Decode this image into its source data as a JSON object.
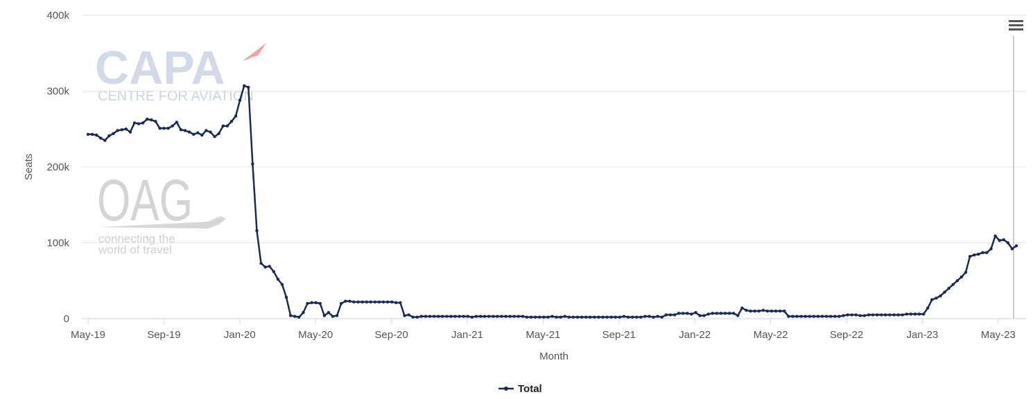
{
  "watermark": {
    "capa_logo": "CAPA",
    "capa_tagline": "CENTRE FOR AVIATION",
    "oag_logo": "OAG",
    "oag_tagline_line1": "connecting the",
    "oag_tagline_line2": "world of travel"
  },
  "menu": {
    "icon": "hamburger-menu-icon"
  },
  "colors": {
    "series": "#1b2a55",
    "grid": "#e6e6e6",
    "axis_text": "#555555",
    "crosshair": "#cccccc"
  },
  "chart_data": {
    "type": "line",
    "title": "",
    "xlabel": "Month",
    "ylabel": "Seats",
    "ylim": [
      0,
      400000
    ],
    "yticks": [
      0,
      100000,
      200000,
      300000,
      400000
    ],
    "ytick_labels": [
      "0",
      "100k",
      "200k",
      "300k",
      "400k"
    ],
    "xtick_labels": [
      "May-19",
      "Sep-19",
      "Jan-20",
      "May-20",
      "Sep-20",
      "Jan-21",
      "May-21",
      "Sep-21",
      "Jan-22",
      "May-22",
      "Sep-22",
      "Jan-23",
      "May-23"
    ],
    "x_start": "2019-05",
    "x_end": "2023-07",
    "grid": true,
    "legend_position": "bottom-center",
    "series": [
      {
        "name": "Total",
        "color": "#1b2a55",
        "values": [
          243000,
          243000,
          242000,
          238000,
          235000,
          241000,
          244000,
          248000,
          249000,
          250000,
          246000,
          258000,
          257000,
          258000,
          263000,
          262000,
          260000,
          251000,
          251000,
          251000,
          254000,
          259000,
          249000,
          248000,
          246000,
          243000,
          245000,
          242000,
          248000,
          246000,
          240000,
          244000,
          254000,
          254000,
          260000,
          267000,
          288000,
          307000,
          305000,
          204000,
          116000,
          73000,
          68000,
          69000,
          62000,
          52000,
          45000,
          28000,
          4000,
          3000,
          2000,
          8000,
          20000,
          21000,
          21000,
          20000,
          4000,
          8000,
          3000,
          4000,
          20000,
          23000,
          23000,
          22000,
          22000,
          22000,
          22000,
          22000,
          22000,
          22000,
          22000,
          22000,
          22000,
          21000,
          21000,
          4000,
          5000,
          2000,
          2000,
          3000,
          3000,
          3000,
          3000,
          3000,
          3000,
          3000,
          3000,
          3000,
          3000,
          3000,
          3000,
          2000,
          3000,
          3000,
          3000,
          3000,
          3000,
          3000,
          3000,
          3000,
          3000,
          3000,
          3000,
          3000,
          2000,
          2000,
          2000,
          2000,
          2000,
          2000,
          3000,
          2000,
          2000,
          3000,
          2000,
          2000,
          2000,
          2000,
          2000,
          2000,
          2000,
          2000,
          2000,
          2000,
          2000,
          2000,
          2000,
          3000,
          2000,
          2000,
          2000,
          2000,
          3000,
          3000,
          2000,
          3000,
          2000,
          5000,
          5000,
          5000,
          7000,
          7000,
          7000,
          6000,
          8000,
          4000,
          4000,
          6000,
          7000,
          7000,
          7000,
          7000,
          7000,
          7000,
          4000,
          14000,
          11000,
          10000,
          10000,
          10000,
          11000,
          10000,
          10000,
          10000,
          10000,
          10000,
          3000,
          3000,
          3000,
          3000,
          3000,
          3000,
          3000,
          3000,
          3000,
          3000,
          3000,
          3000,
          3000,
          4000,
          5000,
          5000,
          5000,
          4000,
          4000,
          5000,
          5000,
          5000,
          5000,
          5000,
          5000,
          5000,
          5000,
          5000,
          6000,
          6000,
          6000,
          6000,
          6000,
          14000,
          25000,
          27000,
          30000,
          35000,
          40000,
          45000,
          50000,
          55000,
          61000,
          82000,
          84000,
          85000,
          87000,
          87000,
          92000,
          109000,
          103000,
          104000,
          100000,
          92000,
          96000
        ]
      }
    ]
  }
}
